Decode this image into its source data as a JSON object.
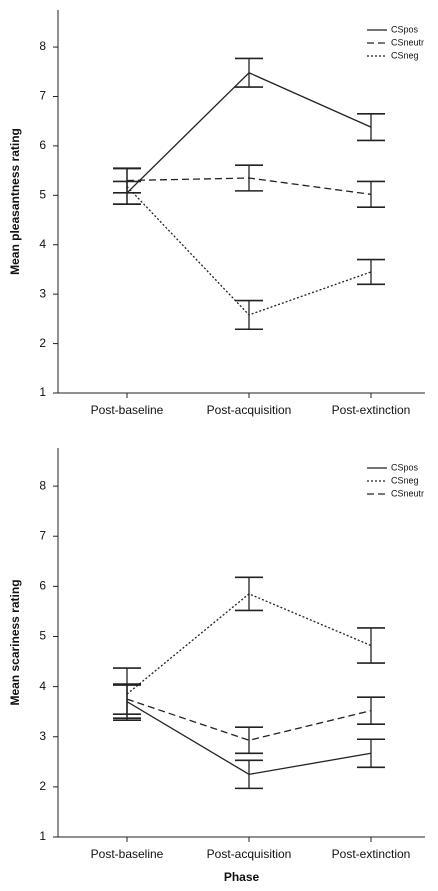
{
  "chart_data": [
    {
      "type": "line",
      "y_label": "Mean pleasantness rating",
      "categories": [
        "Post-baseline",
        "Post-acquisition",
        "Post-extinction"
      ],
      "ylim": [
        1,
        8.75
      ],
      "yticks": [
        1,
        2,
        3,
        4,
        5,
        6,
        7,
        8
      ],
      "legend": "top-right",
      "series": [
        {
          "name": "CSpos",
          "color": "#222222",
          "dash": "solid",
          "values": [
            5.05,
            7.48,
            6.38
          ],
          "errors": [
            0.23,
            0.29,
            0.27
          ]
        },
        {
          "name": "CSneutr",
          "color": "#222222",
          "dash": "dashed",
          "values": [
            5.3,
            5.35,
            5.02
          ],
          "errors": [
            0.25,
            0.26,
            0.26
          ]
        },
        {
          "name": "CSneg",
          "color": "#222222",
          "dash": "dotted",
          "values": [
            5.18,
            2.58,
            3.45
          ],
          "errors": [
            0.36,
            0.29,
            0.25
          ]
        }
      ]
    },
    {
      "type": "line",
      "y_label": "Mean scariness rating",
      "x_label": "Phase",
      "categories": [
        "Post-baseline",
        "Post-acquisition",
        "Post-extinction"
      ],
      "ylim": [
        1,
        8.76
      ],
      "yticks": [
        1,
        2,
        3,
        4,
        5,
        6,
        7,
        8
      ],
      "legend": "top-right",
      "series": [
        {
          "name": "CSpos",
          "color": "#222222",
          "dash": "solid",
          "values": [
            3.7,
            2.25,
            2.67
          ],
          "errors": [
            0.33,
            0.28,
            0.28
          ]
        },
        {
          "name": "CSneg",
          "color": "#222222",
          "dash": "dotted",
          "values": [
            3.85,
            5.85,
            4.82
          ],
          "errors": [
            0.52,
            0.33,
            0.35
          ]
        },
        {
          "name": "CSneutr",
          "color": "#222222",
          "dash": "dashed",
          "values": [
            3.75,
            2.93,
            3.52
          ],
          "errors": [
            0.3,
            0.26,
            0.27
          ]
        }
      ]
    }
  ]
}
